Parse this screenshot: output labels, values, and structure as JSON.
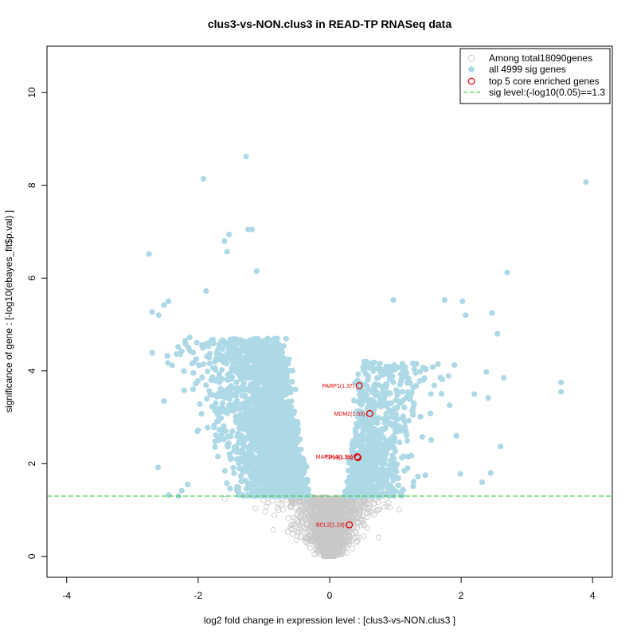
{
  "chart_data": {
    "type": "scatter",
    "title": "clus3-vs-NON.clus3 in READ-TP RNASeq data",
    "xlabel": "log2 fold change in expression level : [clus3-vs-NON.clus3 ]",
    "ylabel": "significance of gene : [-log10(ebayes_fit$p.val) ]",
    "xlim": [
      -4.3,
      4.3
    ],
    "ylim": [
      -0.45,
      11.0
    ],
    "xticks": [
      -4,
      -2,
      0,
      2,
      4
    ],
    "yticks": [
      0,
      2,
      4,
      6,
      8,
      10
    ],
    "xtick_labels": [
      "-4",
      "-2",
      "0",
      "2",
      "4"
    ],
    "ytick_labels": [
      "0",
      "2",
      "4",
      "6",
      "8",
      "10"
    ],
    "sig_threshold": 1.3,
    "colors": {
      "nonsig": "#c8c8c8",
      "sig": "#add8e6",
      "core": "#e00000",
      "threshold": "#22cc22"
    },
    "legend": {
      "position": "top-right",
      "entries": [
        {
          "label": "Among total18090genes",
          "symbol": "open-circle-gray"
        },
        {
          "label": "all 4999 sig genes",
          "symbol": "filled-circle-lightblue"
        },
        {
          "label": "top 5 core enriched genes",
          "symbol": "open-circle-red"
        },
        {
          "label": "sig level:(-log10(0.05)==1.3",
          "symbol": "dashed-line-green"
        }
      ]
    },
    "core_genes": [
      {
        "label": "PARP1(1.37)",
        "x": 0.45,
        "y": 3.68
      },
      {
        "label": "MDM2(1.53)",
        "x": 0.61,
        "y": 3.08
      },
      {
        "label": "MAP2K4(1.39)",
        "x": 0.42,
        "y": 2.15
      },
      {
        "label": "TP53(1.34)",
        "x": 0.43,
        "y": 2.13
      },
      {
        "label": "BCL2(1.24)",
        "x": 0.3,
        "y": 0.68
      }
    ],
    "outlier_sig_points": [
      [
        -1.27,
        8.62
      ],
      [
        -1.92,
        8.14
      ],
      [
        3.9,
        8.07
      ],
      [
        -1.53,
        6.94
      ],
      [
        -1.6,
        6.8
      ],
      [
        -1.18,
        7.05
      ],
      [
        -1.24,
        7.05
      ],
      [
        -2.75,
        6.52
      ],
      [
        -1.56,
        6.57
      ],
      [
        -1.11,
        6.15
      ],
      [
        2.7,
        6.12
      ],
      [
        -2.45,
        5.5
      ],
      [
        -2.52,
        5.42
      ],
      [
        -1.88,
        5.72
      ],
      [
        -2.7,
        5.27
      ],
      [
        -2.6,
        5.2
      ],
      [
        3.52,
        3.75
      ],
      [
        3.52,
        3.55
      ],
      [
        2.07,
        5.2
      ],
      [
        2.02,
        5.5
      ],
      [
        2.47,
        5.25
      ],
      [
        1.75,
        5.53
      ],
      [
        0.97,
        5.53
      ],
      [
        -2.7,
        4.39
      ],
      [
        -2.46,
        4.17
      ],
      [
        -2.2,
        4.65
      ],
      [
        -2.13,
        4.72
      ],
      [
        -2.52,
        3.35
      ],
      [
        -2.61,
        1.92
      ],
      [
        -2.45,
        1.32
      ],
      [
        -2.3,
        1.3
      ],
      [
        -2.16,
        1.55
      ],
      [
        2.6,
        2.37
      ],
      [
        2.45,
        1.8
      ],
      [
        2.32,
        1.6
      ],
      [
        2.65,
        3.85
      ],
      [
        2.55,
        4.8
      ],
      [
        1.99,
        1.78
      ],
      [
        -2.25,
        1.42
      ],
      [
        2.2,
        3.5
      ]
    ]
  }
}
